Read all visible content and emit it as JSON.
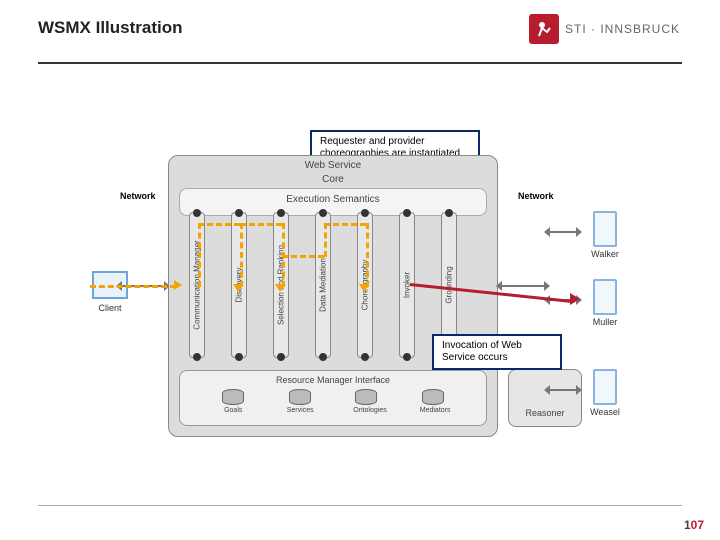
{
  "header": {
    "title": "WSMX Illustration",
    "logo_text": "STI · INNSBRUCK",
    "logo_bg": "#b61d2e"
  },
  "callouts": {
    "top": "Requester and provider choreographies are instantiated and processed",
    "right": "Invocation of Web Service occurs"
  },
  "diagram": {
    "core_label": "Web Service",
    "core_sub": "Core",
    "exec_label": "Execution Semantics",
    "components": [
      "Communication Manager",
      "Discovery",
      "Selection and Ranking",
      "Data Mediation",
      "Choreography",
      "Invoker",
      "Grounding"
    ],
    "rmi_title": "Resource Manager Interface",
    "cylinders": [
      "Goals",
      "Services",
      "Ontologies",
      "Mediators"
    ],
    "reasoner": "Reasoner",
    "client_label": "Client",
    "network_label": "Network",
    "servers": [
      "Walker",
      "Muller",
      "Weasel"
    ]
  },
  "style": {
    "orange": "#f5a300",
    "red": "#b61d2e",
    "box_bg": "#dcdcdc",
    "callout_border": "#0a2a66"
  },
  "page": {
    "number": "107"
  }
}
